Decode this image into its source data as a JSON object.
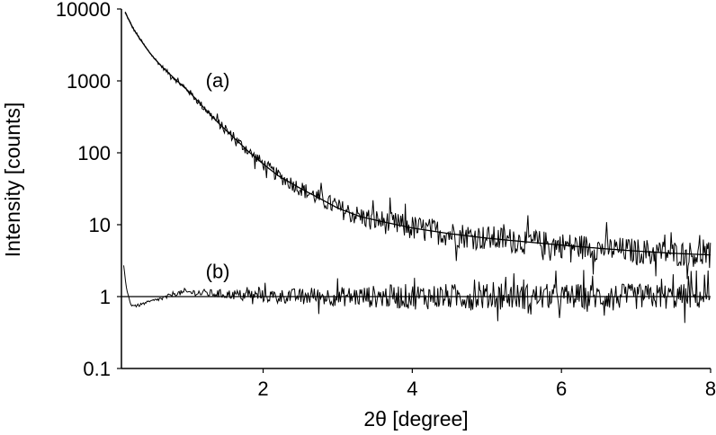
{
  "chart_data": {
    "type": "line",
    "title": "",
    "xlabel": "2θ [degree]",
    "ylabel": "Intensity [counts]",
    "x_scale": "linear",
    "y_scale": "log",
    "xlim": [
      0.1,
      8
    ],
    "ylim": [
      0.1,
      10000
    ],
    "x_ticks": [
      2,
      4,
      6,
      8
    ],
    "x_tick_labels": [
      "2",
      "4",
      "6",
      "8"
    ],
    "y_ticks": [
      0.1,
      1,
      10,
      100,
      1000,
      10000
    ],
    "y_tick_labels": [
      "0.1",
      "1",
      "10",
      "100",
      "1000",
      "10000"
    ],
    "grid": false,
    "legend": "none",
    "annotations": [
      {
        "text": "(a)",
        "x": 1.35,
        "y": 1000
      },
      {
        "text": "(b)",
        "x": 1.35,
        "y": 2.2
      }
    ],
    "series": [
      {
        "style": "noisy",
        "x": [
          0.15,
          0.25,
          0.35,
          0.45,
          0.55,
          0.65,
          0.8,
          1.0,
          1.2,
          1.4,
          1.6,
          1.8,
          2.0,
          2.2,
          2.5,
          2.8,
          3.0,
          3.3,
          3.6,
          4.0,
          4.5,
          5.0,
          5.5,
          6.0,
          6.5,
          7.0,
          7.5,
          8.0
        ],
        "y": [
          9000,
          5500,
          3800,
          2700,
          2000,
          1550,
          1100,
          720,
          430,
          260,
          165,
          105,
          70,
          48,
          32,
          22,
          17,
          13,
          11,
          9,
          7.5,
          6.5,
          5.8,
          5.2,
          4.7,
          4.3,
          4.0,
          3.8
        ]
      },
      {
        "style": "smooth",
        "x": [
          0.15,
          0.25,
          0.35,
          0.45,
          0.55,
          0.65,
          0.8,
          1.0,
          1.2,
          1.4,
          1.6,
          1.8,
          2.0,
          2.2,
          2.5,
          2.8,
          3.0,
          3.3,
          3.6,
          4.0,
          4.5,
          5.0,
          5.5,
          6.0,
          6.5,
          7.0,
          7.5,
          8.0
        ],
        "y": [
          9000,
          5500,
          3800,
          2700,
          2000,
          1550,
          1100,
          720,
          430,
          260,
          165,
          105,
          70,
          48,
          32,
          22,
          17,
          13,
          11,
          9,
          7.5,
          6.5,
          5.8,
          5.2,
          4.7,
          4.3,
          4.0,
          3.8
        ]
      },
      {
        "style": "noisy",
        "x": [
          0.13,
          0.17,
          0.22,
          0.3,
          0.4,
          0.5,
          0.6,
          0.7,
          0.8,
          1.0,
          1.5,
          2.0,
          3.0,
          4.0,
          5.0,
          6.0,
          7.0,
          8.0
        ],
        "y": [
          2.6,
          1.3,
          0.78,
          0.74,
          0.8,
          0.86,
          0.92,
          0.98,
          1.1,
          1.15,
          1.08,
          1.02,
          1.0,
          1.0,
          1.0,
          1.0,
          1.0,
          1.0
        ]
      },
      {
        "style": "smooth",
        "x": [
          0.1,
          8.0
        ],
        "y": [
          1.0,
          1.0
        ]
      }
    ]
  }
}
